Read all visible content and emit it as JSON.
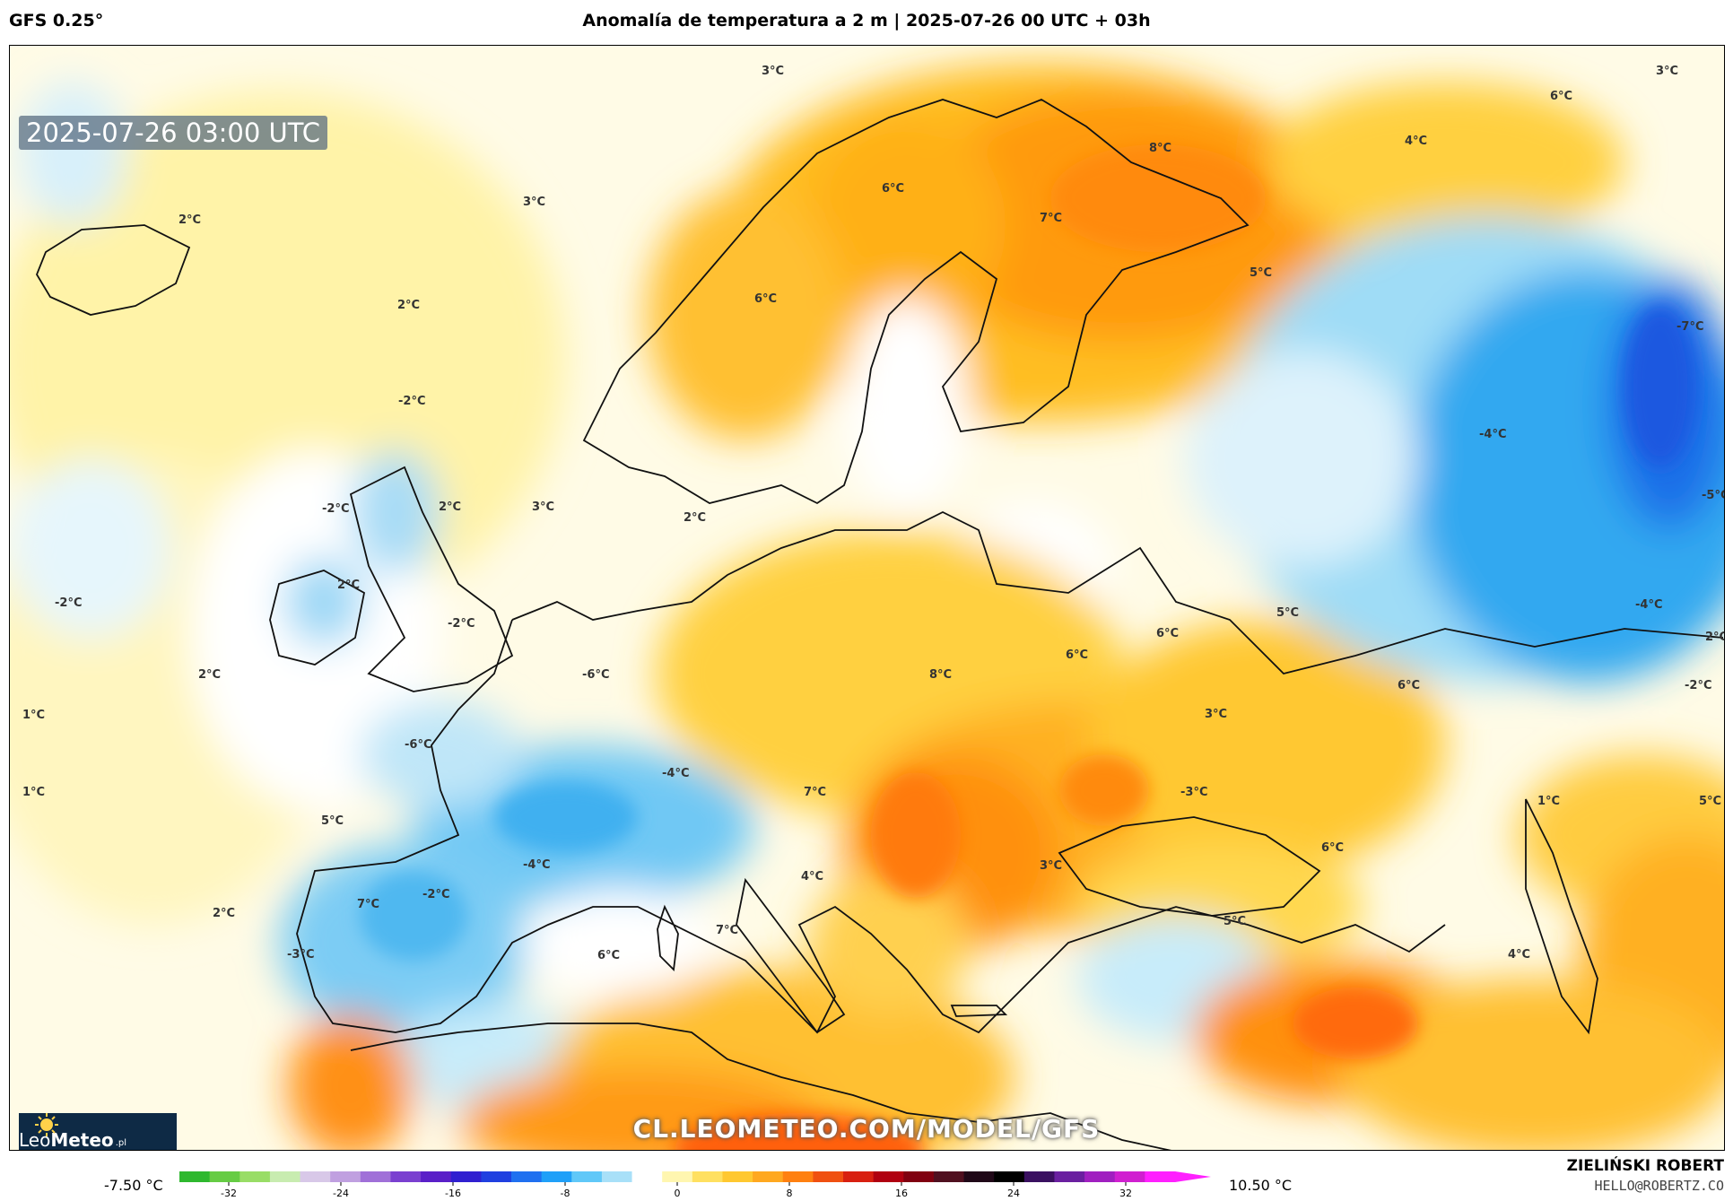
{
  "header": {
    "model": "GFS 0.25°",
    "title": "Anomalía de temperatura a 2 m | 2025-07-26 00 UTC + 03h"
  },
  "map": {
    "timestamp": "2025-07-26 03:00 UTC",
    "watermark": "CL.LEOMETEO.COM/MODEL/GFS",
    "logo": {
      "brand_light": "Leo",
      "brand_bold": "Meteo",
      "tld": ".pl"
    },
    "labels": [
      {
        "text": "3°C"
      },
      {
        "text": "3°C"
      },
      {
        "text": "6°C"
      },
      {
        "text": "4°C"
      },
      {
        "text": "8°C"
      },
      {
        "text": "2°C"
      },
      {
        "text": "3°C"
      },
      {
        "text": "6°C"
      },
      {
        "text": "7°C"
      },
      {
        "text": "5°C"
      },
      {
        "text": "6°C"
      },
      {
        "text": "2°C"
      },
      {
        "text": "-7°C"
      },
      {
        "text": "-2°C"
      },
      {
        "text": "-4°C"
      },
      {
        "text": "-2°C"
      },
      {
        "text": "2°C"
      },
      {
        "text": "3°C"
      },
      {
        "text": "2°C"
      },
      {
        "text": "-5°C"
      },
      {
        "text": "-2°C"
      },
      {
        "text": "2°C"
      },
      {
        "text": "-2°C"
      },
      {
        "text": "5°C"
      },
      {
        "text": "6°C"
      },
      {
        "text": "-4°C"
      },
      {
        "text": "2°C"
      },
      {
        "text": "-6°C"
      },
      {
        "text": "8°C"
      },
      {
        "text": "6°C"
      },
      {
        "text": "1°C"
      },
      {
        "text": "-6°C"
      },
      {
        "text": "3°C"
      },
      {
        "text": "6°C"
      },
      {
        "text": "-2°C"
      },
      {
        "text": "2°C"
      },
      {
        "text": "1°C"
      },
      {
        "text": "-4°C"
      },
      {
        "text": "7°C"
      },
      {
        "text": "-3°C"
      },
      {
        "text": "1°C"
      },
      {
        "text": "5°C"
      },
      {
        "text": "5°C"
      },
      {
        "text": "-4°C"
      },
      {
        "text": "4°C"
      },
      {
        "text": "3°C"
      },
      {
        "text": "6°C"
      },
      {
        "text": "7°C"
      },
      {
        "text": "-2°C"
      },
      {
        "text": "2°C"
      },
      {
        "text": "7°C"
      },
      {
        "text": "5°C"
      },
      {
        "text": "-3°C"
      },
      {
        "text": "6°C"
      },
      {
        "text": "4°C"
      }
    ]
  },
  "legend": {
    "min_value": "-7.50 °C",
    "max_value": "10.50 °C",
    "ticks": [
      "-32",
      "-24",
      "-16",
      "-8",
      "0",
      "8",
      "16",
      "24",
      "32"
    ],
    "colors": [
      "#2eb82e",
      "#66cc44",
      "#99dd66",
      "#c8ecb0",
      "#d8c8e8",
      "#c0a0e0",
      "#a070d8",
      "#7a40d0",
      "#5a20c8",
      "#3020d0",
      "#2040e0",
      "#2070f0",
      "#20a0f8",
      "#60c8f8",
      "#a8e0f8",
      "#ffffff",
      "#fff6b0",
      "#ffe060",
      "#ffc830",
      "#ffa820",
      "#ff8010",
      "#f05010",
      "#d82010",
      "#b00010",
      "#800010",
      "#501020",
      "#200818",
      "#000000",
      "#3a1060",
      "#6a20a0",
      "#a020c0",
      "#d020d0",
      "#ff20ff"
    ]
  },
  "credit": {
    "name": "ZIELIŃSKI ROBERT",
    "email": "HELLO@ROBERTZ.CO"
  }
}
